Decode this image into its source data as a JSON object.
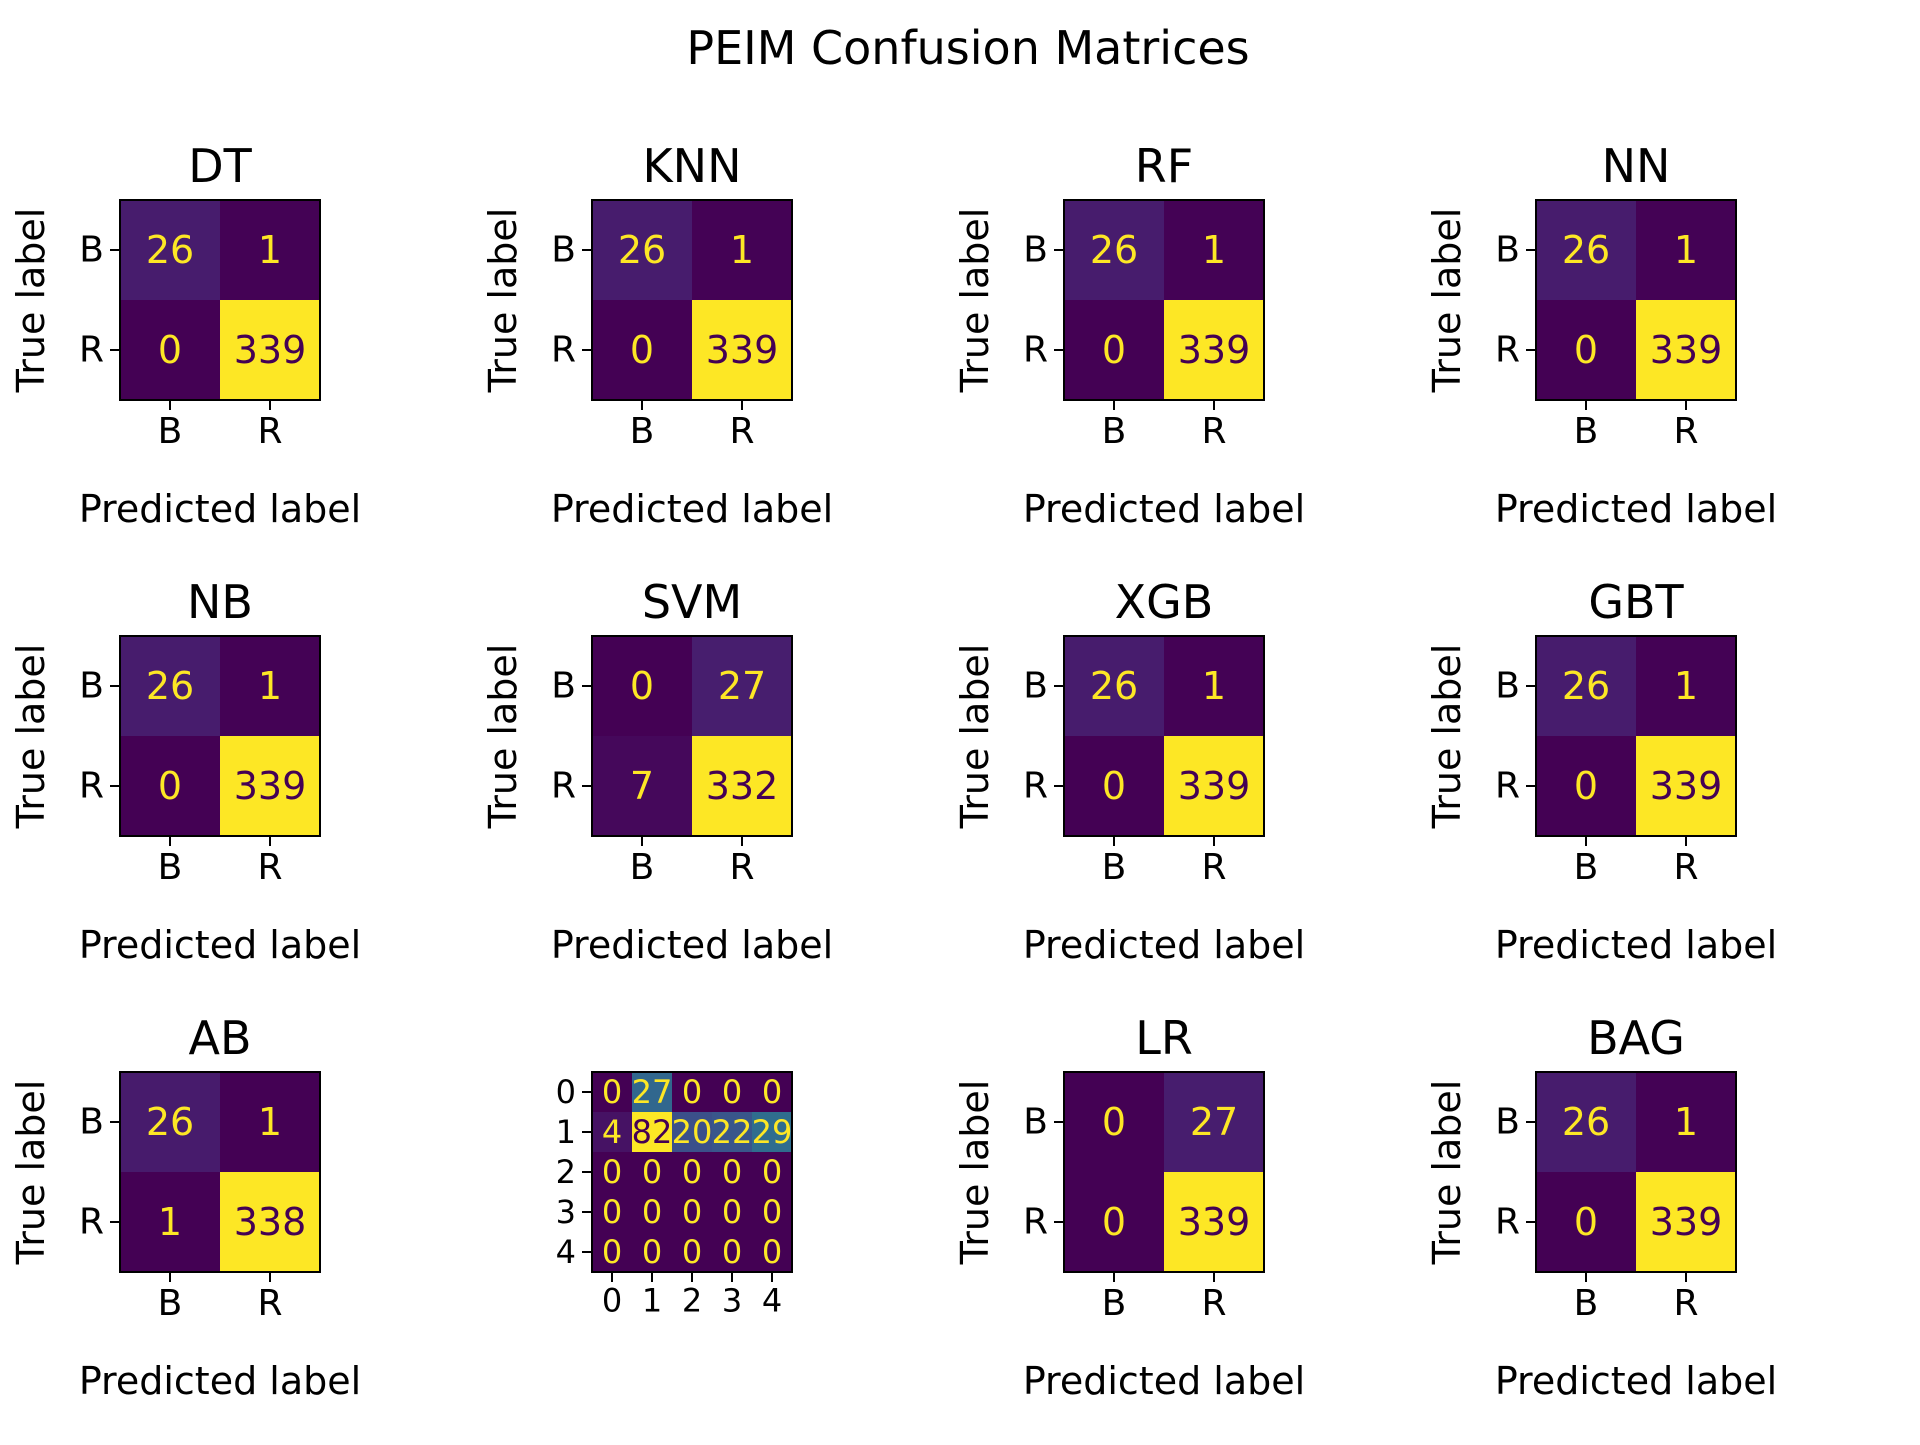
{
  "figure_title": "PEIM Confusion Matrices",
  "chart_data": [
    {
      "type": "heatmap",
      "title": "DT",
      "xlabel": "Predicted label",
      "ylabel": "True label",
      "x_ticks": [
        "B",
        "R"
      ],
      "y_ticks": [
        "B",
        "R"
      ],
      "values": [
        [
          26,
          1
        ],
        [
          0,
          339
        ]
      ],
      "colormap": "viridis"
    },
    {
      "type": "heatmap",
      "title": "KNN",
      "xlabel": "Predicted label",
      "ylabel": "True label",
      "x_ticks": [
        "B",
        "R"
      ],
      "y_ticks": [
        "B",
        "R"
      ],
      "values": [
        [
          26,
          1
        ],
        [
          0,
          339
        ]
      ],
      "colormap": "viridis"
    },
    {
      "type": "heatmap",
      "title": "RF",
      "xlabel": "Predicted label",
      "ylabel": "True label",
      "x_ticks": [
        "B",
        "R"
      ],
      "y_ticks": [
        "B",
        "R"
      ],
      "values": [
        [
          26,
          1
        ],
        [
          0,
          339
        ]
      ],
      "colormap": "viridis"
    },
    {
      "type": "heatmap",
      "title": "NN",
      "xlabel": "Predicted label",
      "ylabel": "True label",
      "x_ticks": [
        "B",
        "R"
      ],
      "y_ticks": [
        "B",
        "R"
      ],
      "values": [
        [
          26,
          1
        ],
        [
          0,
          339
        ]
      ],
      "colormap": "viridis"
    },
    {
      "type": "heatmap",
      "title": "NB",
      "xlabel": "Predicted label",
      "ylabel": "True label",
      "x_ticks": [
        "B",
        "R"
      ],
      "y_ticks": [
        "B",
        "R"
      ],
      "values": [
        [
          26,
          1
        ],
        [
          0,
          339
        ]
      ],
      "colormap": "viridis"
    },
    {
      "type": "heatmap",
      "title": "SVM",
      "xlabel": "Predicted label",
      "ylabel": "True label",
      "x_ticks": [
        "B",
        "R"
      ],
      "y_ticks": [
        "B",
        "R"
      ],
      "values": [
        [
          0,
          27
        ],
        [
          7,
          332
        ]
      ],
      "colormap": "viridis"
    },
    {
      "type": "heatmap",
      "title": "XGB",
      "xlabel": "Predicted label",
      "ylabel": "True label",
      "x_ticks": [
        "B",
        "R"
      ],
      "y_ticks": [
        "B",
        "R"
      ],
      "values": [
        [
          26,
          1
        ],
        [
          0,
          339
        ]
      ],
      "colormap": "viridis"
    },
    {
      "type": "heatmap",
      "title": "GBT",
      "xlabel": "Predicted label",
      "ylabel": "True label",
      "x_ticks": [
        "B",
        "R"
      ],
      "y_ticks": [
        "B",
        "R"
      ],
      "values": [
        [
          26,
          1
        ],
        [
          0,
          339
        ]
      ],
      "colormap": "viridis"
    },
    {
      "type": "heatmap",
      "title": "AB",
      "xlabel": "Predicted label",
      "ylabel": "True label",
      "x_ticks": [
        "B",
        "R"
      ],
      "y_ticks": [
        "B",
        "R"
      ],
      "values": [
        [
          26,
          1
        ],
        [
          1,
          338
        ]
      ],
      "colormap": "viridis"
    },
    {
      "type": "heatmap",
      "title": "",
      "xlabel": "",
      "ylabel": "",
      "x_ticks": [
        "0",
        "1",
        "2",
        "3",
        "4"
      ],
      "y_ticks": [
        "0",
        "1",
        "2",
        "3",
        "4"
      ],
      "values": [
        [
          0,
          27,
          0,
          0,
          0
        ],
        [
          4,
          82,
          20,
          22,
          29
        ],
        [
          0,
          0,
          0,
          0,
          0
        ],
        [
          0,
          0,
          0,
          0,
          0
        ],
        [
          0,
          0,
          0,
          0,
          0
        ]
      ],
      "colormap": "viridis"
    },
    {
      "type": "heatmap",
      "title": "LR",
      "xlabel": "Predicted label",
      "ylabel": "True label",
      "x_ticks": [
        "B",
        "R"
      ],
      "y_ticks": [
        "B",
        "R"
      ],
      "values": [
        [
          0,
          27
        ],
        [
          0,
          339
        ]
      ],
      "colormap": "viridis"
    },
    {
      "type": "heatmap",
      "title": "BAG",
      "xlabel": "Predicted label",
      "ylabel": "True label",
      "x_ticks": [
        "B",
        "R"
      ],
      "y_ticks": [
        "B",
        "R"
      ],
      "values": [
        [
          26,
          1
        ],
        [
          0,
          339
        ]
      ],
      "colormap": "viridis"
    }
  ]
}
